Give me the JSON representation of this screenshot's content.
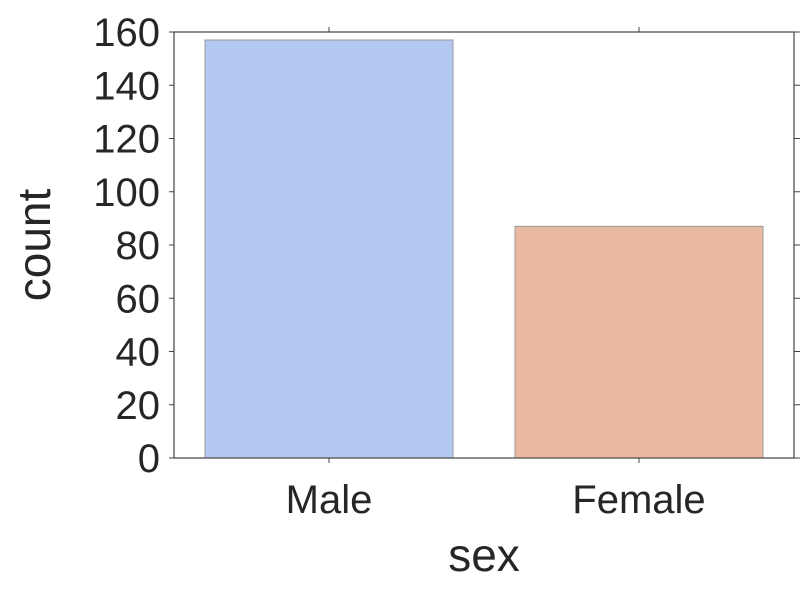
{
  "chart_data": {
    "type": "bar",
    "title": "",
    "xlabel": "sex",
    "ylabel": "count",
    "categories": [
      "Male",
      "Female"
    ],
    "values": [
      157,
      87
    ],
    "colors": [
      "#b4c9f2",
      "#eab9a2"
    ],
    "ylim": [
      0,
      160
    ],
    "yticks": [
      0,
      20,
      40,
      60,
      80,
      100,
      120,
      140,
      160
    ],
    "grid": false
  }
}
